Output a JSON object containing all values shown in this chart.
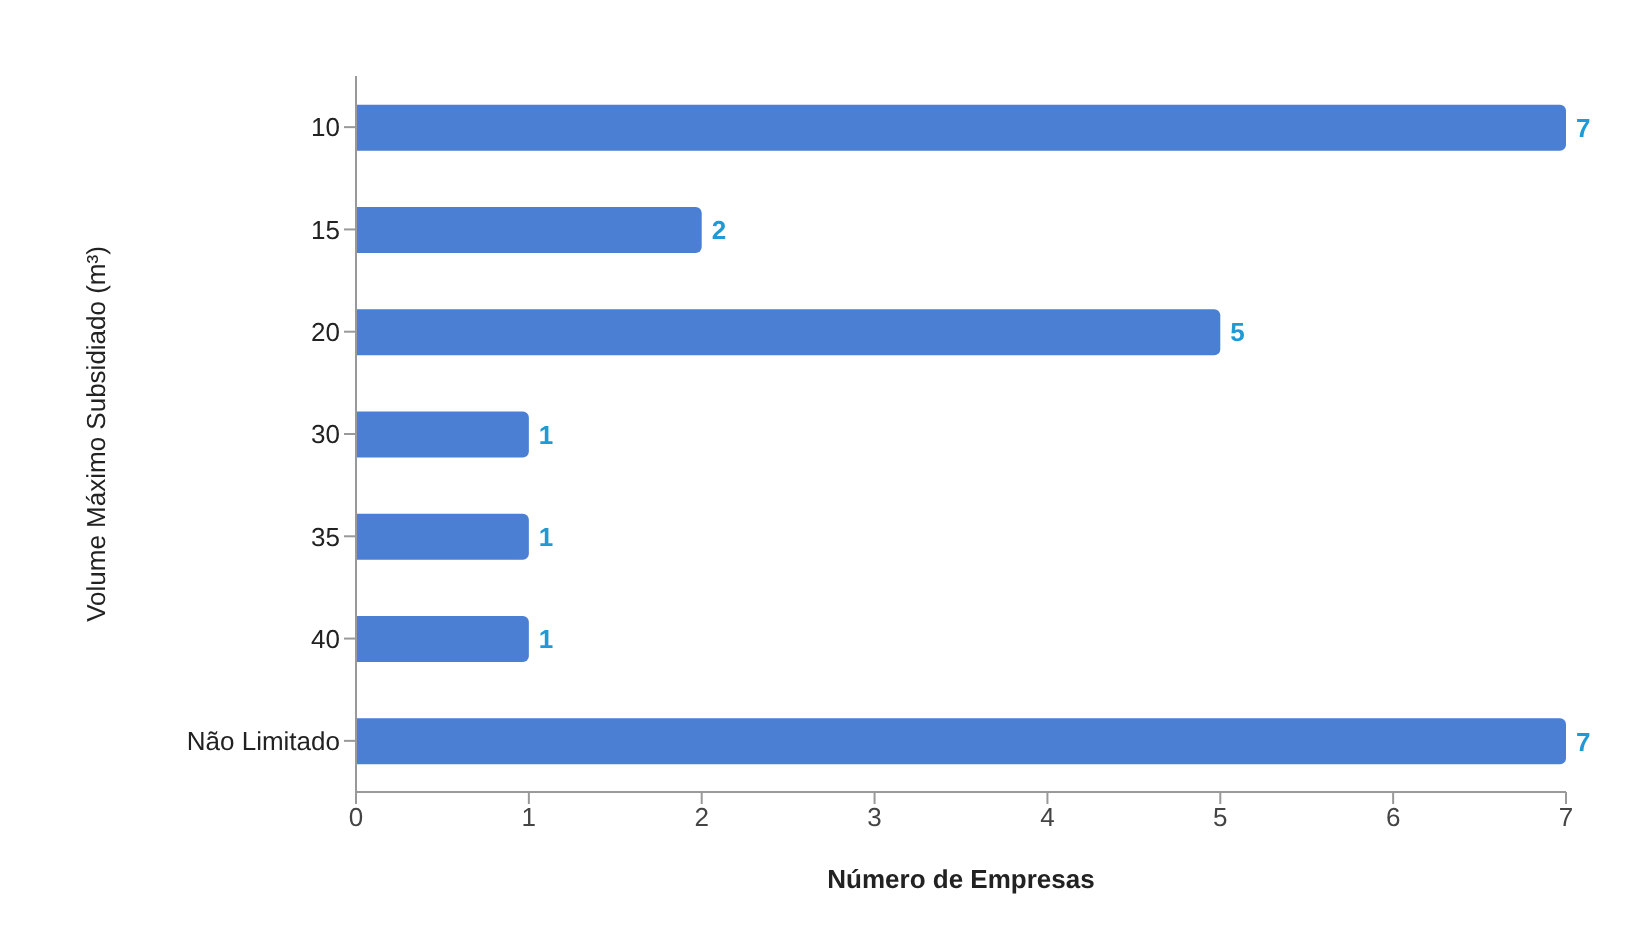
{
  "chart_data": {
    "type": "bar",
    "orientation": "horizontal",
    "xlabel": "Número de Empresas",
    "ylabel": "Volume Máximo Subsidiado (m³)",
    "categories": [
      "10",
      "15",
      "20",
      "30",
      "35",
      "40",
      "Não Limitado"
    ],
    "values": [
      7,
      2,
      5,
      1,
      1,
      1,
      7
    ],
    "color": "#4a7fd4",
    "xlim": [
      0,
      7
    ],
    "xticks": [
      0,
      1,
      2,
      3,
      4,
      5,
      6,
      7
    ],
    "grid": false,
    "data_labels": true
  }
}
